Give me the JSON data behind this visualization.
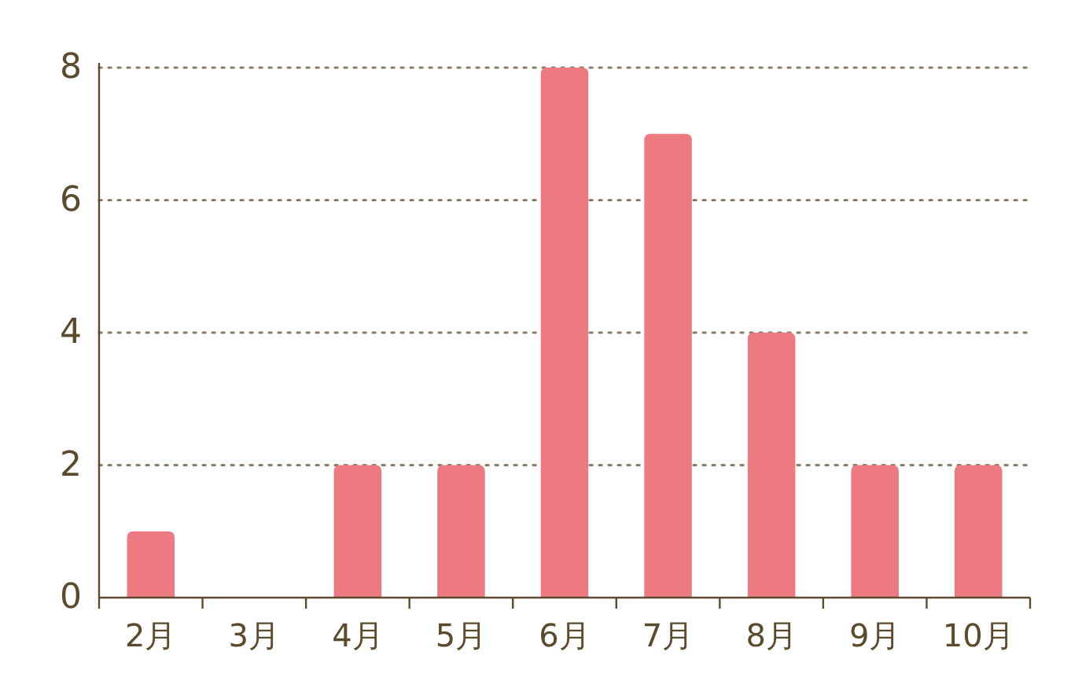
{
  "chart_data": {
    "type": "bar",
    "categories": [
      "2月",
      "3月",
      "4月",
      "5月",
      "6月",
      "7月",
      "8月",
      "9月",
      "10月"
    ],
    "values": [
      1,
      0,
      2,
      2,
      8,
      7,
      4,
      2,
      2
    ],
    "color": "#ed7a80",
    "ylim": [
      0,
      8
    ],
    "yticks": [
      0,
      2,
      4,
      6,
      8
    ],
    "grid": "y"
  }
}
